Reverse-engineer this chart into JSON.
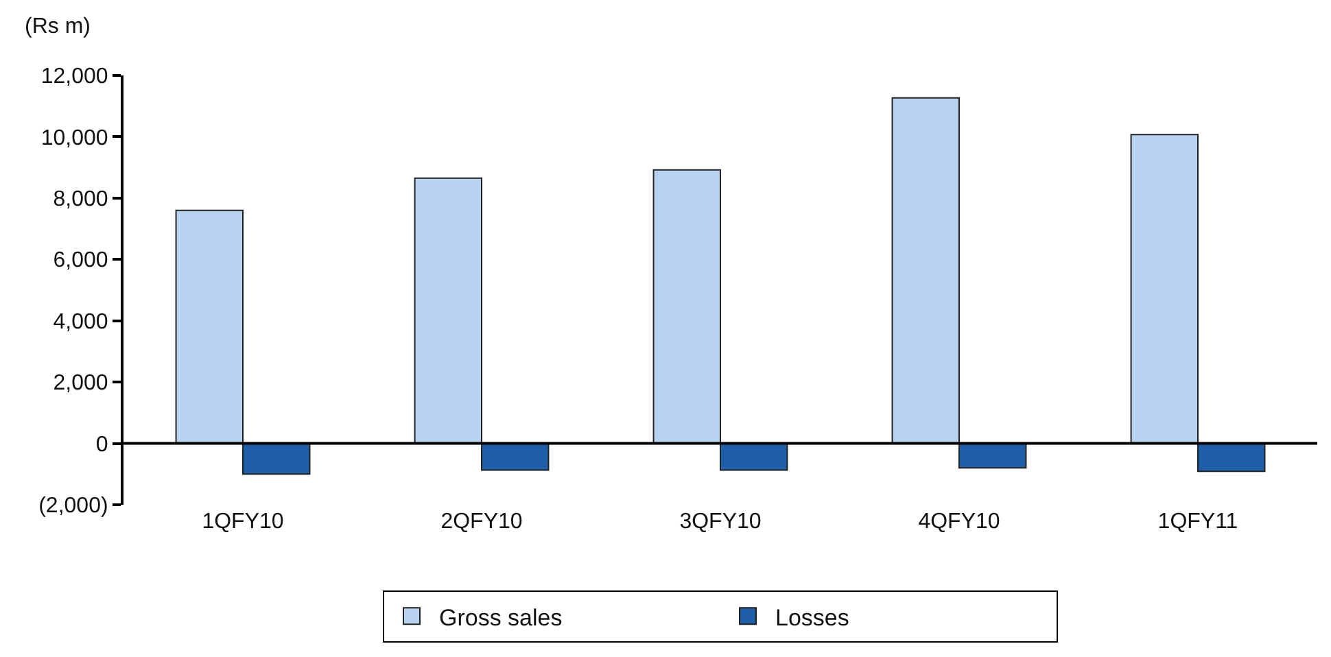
{
  "chart_data": {
    "type": "bar",
    "ylabel": "(Rs m)",
    "categories": [
      "1QFY10",
      "2QFY10",
      "3QFY10",
      "4QFY10",
      "1QFY11"
    ],
    "series": [
      {
        "name": "Gross sales",
        "color": "#b7d3f0",
        "values": [
          7600,
          8650,
          8920,
          11270,
          10070
        ]
      },
      {
        "name": "Losses",
        "color": "#1f5fa8",
        "values": [
          -1000,
          -870,
          -870,
          -800,
          -910
        ]
      }
    ],
    "ylim": [
      -2000,
      12000
    ],
    "yticks": [
      {
        "value": -2000,
        "label": "(2,000)"
      },
      {
        "value": 0,
        "label": "0"
      },
      {
        "value": 2000,
        "label": "2,000"
      },
      {
        "value": 4000,
        "label": "4,000"
      },
      {
        "value": 6000,
        "label": "6,000"
      },
      {
        "value": 8000,
        "label": "8,000"
      },
      {
        "value": 10000,
        "label": "10,000"
      },
      {
        "value": 12000,
        "label": "12,000"
      }
    ],
    "legend": "bottom"
  }
}
